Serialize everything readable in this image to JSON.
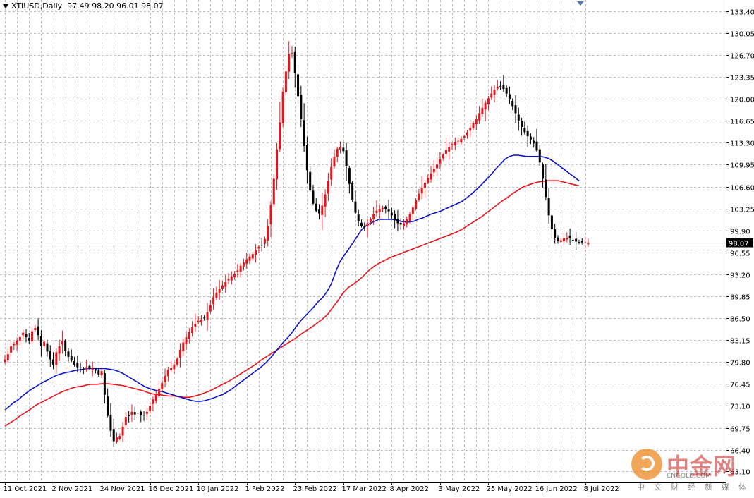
{
  "header": {
    "symbol": "XTIUSD,Daily",
    "ohlc": "97.49 98.20 96.01 98.07"
  },
  "colors": {
    "bull": "#e8141b",
    "bear": "#000000",
    "ma_fast": "#0a14c8",
    "ma_slow": "#e8141b",
    "grid": "#c0c0c0"
  },
  "watermark": {
    "name": "中金网",
    "domain": "CNGOLD.COM",
    "subtitle": "中文财经新媒体"
  },
  "chart_data": {
    "type": "candlestick",
    "ylim": [
      61.4,
      135.1
    ],
    "y_ticks": [
      "133.40",
      "130.05",
      "126.70",
      "123.35",
      "120.00",
      "116.65",
      "113.30",
      "109.95",
      "106.60",
      "103.25",
      "99.90",
      "96.55",
      "93.20",
      "89.85",
      "86.50",
      "83.15",
      "79.80",
      "76.45",
      "73.10",
      "69.75",
      "66.40",
      "63.10"
    ],
    "x_ticks": [
      {
        "label": "11 Oct 2021",
        "bar": 0
      },
      {
        "label": "2 Nov 2021",
        "bar": 16
      },
      {
        "label": "24 Nov 2021",
        "bar": 32
      },
      {
        "label": "16 Dec 2021",
        "bar": 48
      },
      {
        "label": "10 Jan 2022",
        "bar": 64
      },
      {
        "label": "1 Feb 2022",
        "bar": 80
      },
      {
        "label": "23 Feb 2022",
        "bar": 96
      },
      {
        "label": "17 Mar 2022",
        "bar": 112
      },
      {
        "label": "8 Apr 2022",
        "bar": 128
      },
      {
        "label": "3 May 2022",
        "bar": 144
      },
      {
        "label": "25 May 2022",
        "bar": 160
      },
      {
        "label": "16 Jun 2022",
        "bar": 176
      },
      {
        "label": "8 Jul 2022",
        "bar": 192
      }
    ],
    "last_price": 98.07,
    "last_price_label": "98.07",
    "closes": [
      80.2,
      81.0,
      82.2,
      82.6,
      83.1,
      83.6,
      84.3,
      83.6,
      83.1,
      84.5,
      85.0,
      83.9,
      82.2,
      82.9,
      81.4,
      80.2,
      79.4,
      81.3,
      82.2,
      83.0,
      81.5,
      80.6,
      80.0,
      79.4,
      79.0,
      78.9,
      78.6,
      79.0,
      78.9,
      78.9,
      78.5,
      77.9,
      78.4,
      74.8,
      71.6,
      69.3,
      67.7,
      68.3,
      68.5,
      69.9,
      71.4,
      71.6,
      72.2,
      71.8,
      72.0,
      71.7,
      71.7,
      72.2,
      73.1,
      74.1,
      74.9,
      75.7,
      76.6,
      77.7,
      78.6,
      78.9,
      79.4,
      80.3,
      81.7,
      82.8,
      83.6,
      84.4,
      85.1,
      85.6,
      86.1,
      86.3,
      86.5,
      87.4,
      88.5,
      89.7,
      90.4,
      91.0,
      91.5,
      92.0,
      92.5,
      92.9,
      93.3,
      93.8,
      94.5,
      95.0,
      95.5,
      95.9,
      96.3,
      96.9,
      97.4,
      97.6,
      98.6,
      100.6,
      103.8,
      107.8,
      112.3,
      116.4,
      121.1,
      124.2,
      126.9,
      127.0,
      123.9,
      120.4,
      116.9,
      112.8,
      109.1,
      106.0,
      104.0,
      102.9,
      102.5,
      103.7,
      105.4,
      107.5,
      109.6,
      111.2,
      112.4,
      112.7,
      112.0,
      109.7,
      107.0,
      104.5,
      102.6,
      101.3,
      100.6,
      100.4,
      101.0,
      101.7,
      102.4,
      102.9,
      103.2,
      103.3,
      103.2,
      102.8,
      102.2,
      101.5,
      101.0,
      100.8,
      101.0,
      101.6,
      102.4,
      103.4,
      104.5,
      105.5,
      106.4,
      107.2,
      107.9,
      108.6,
      109.3,
      110.0,
      110.8,
      111.5,
      112.2,
      112.7,
      113.1,
      113.4,
      113.6,
      113.9,
      114.3,
      114.9,
      115.6,
      116.3,
      117.0,
      117.8,
      118.6,
      119.4,
      120.1,
      120.8,
      121.4,
      121.8,
      121.9,
      121.5,
      120.8,
      119.9,
      118.9,
      117.8,
      116.7,
      115.7,
      114.9,
      114.3,
      113.8,
      113.2,
      112.1,
      110.3,
      107.8,
      105.0,
      102.2,
      100.1,
      98.8,
      98.3,
      98.4,
      98.7,
      98.8,
      98.7,
      98.4,
      98.2,
      98.07,
      98.07,
      98.07,
      98.07
    ],
    "ma_fast": [
      72.5,
      73.0,
      73.6,
      74.0,
      74.6,
      75.1,
      75.6,
      76.0,
      76.4,
      76.8,
      77.1,
      77.5,
      77.8,
      78.0,
      78.2,
      78.3,
      78.5,
      78.6,
      78.7,
      78.8,
      78.8,
      78.8,
      78.8,
      78.8,
      78.7,
      78.6,
      78.4,
      78.1,
      77.7,
      77.3,
      76.9,
      76.5,
      76.1,
      75.8,
      75.6,
      75.4,
      75.3,
      75.1,
      74.9,
      74.7,
      74.5,
      74.3,
      74.1,
      73.9,
      73.8,
      73.8,
      73.9,
      74.1,
      74.3,
      74.6,
      74.8,
      75.2,
      75.6,
      76.1,
      76.6,
      77.1,
      77.6,
      78.1,
      78.6,
      79.1,
      79.7,
      80.4,
      81.2,
      82.0,
      82.8,
      83.5,
      84.3,
      85.2,
      86.1,
      86.8,
      87.5,
      88.2,
      89.0,
      89.6,
      90.5,
      91.7,
      93.5,
      95.1,
      96.1,
      97.0,
      98.0,
      99.0,
      100.0,
      100.6,
      101.0,
      101.3,
      101.6,
      101.6,
      101.6,
      101.6,
      101.5,
      101.3,
      101.2,
      101.2,
      101.3,
      101.6,
      101.8,
      102.1,
      102.4,
      102.6,
      102.8,
      103.1,
      103.4,
      103.7,
      104.0,
      104.3,
      104.8,
      105.3,
      105.9,
      106.5,
      107.2,
      107.9,
      108.6,
      109.4,
      110.1,
      110.8,
      111.2,
      111.4,
      111.4,
      111.3,
      111.2,
      111.2,
      111.2,
      111.2,
      111.1,
      110.9,
      110.5,
      110.0,
      109.5,
      109.0,
      108.5,
      108.0,
      107.5
    ],
    "ma_slow": [
      70.0,
      70.5,
      71.0,
      71.6,
      72.1,
      72.6,
      73.2,
      73.6,
      74.0,
      74.4,
      74.8,
      75.2,
      75.5,
      75.8,
      76.0,
      76.1,
      76.3,
      76.4,
      76.4,
      76.5,
      76.5,
      76.4,
      76.3,
      76.2,
      76.0,
      75.8,
      75.6,
      75.4,
      75.1,
      74.9,
      74.8,
      74.7,
      74.6,
      74.6,
      74.5,
      74.4,
      74.4,
      74.6,
      74.8,
      75.1,
      75.4,
      75.8,
      76.2,
      76.6,
      77.0,
      77.5,
      78.0,
      78.5,
      79.0,
      79.5,
      80.1,
      80.6,
      81.1,
      81.6,
      82.1,
      82.6,
      83.1,
      83.6,
      84.2,
      84.7,
      85.2,
      85.8,
      86.4,
      87.1,
      88.2,
      89.2,
      90.4,
      91.2,
      91.7,
      92.3,
      93.0,
      93.8,
      94.4,
      94.9,
      95.3,
      95.7,
      96.0,
      96.3,
      96.6,
      96.9,
      97.2,
      97.5,
      97.8,
      98.1,
      98.4,
      98.7,
      99.0,
      99.3,
      99.6,
      100.0,
      100.5,
      101.0,
      101.5,
      102.0,
      102.6,
      103.2,
      103.8,
      104.4,
      104.9,
      105.5,
      106.0,
      106.5,
      106.8,
      107.1,
      107.3,
      107.4,
      107.5,
      107.5,
      107.5,
      107.3,
      107.1,
      106.9,
      106.7
    ]
  }
}
